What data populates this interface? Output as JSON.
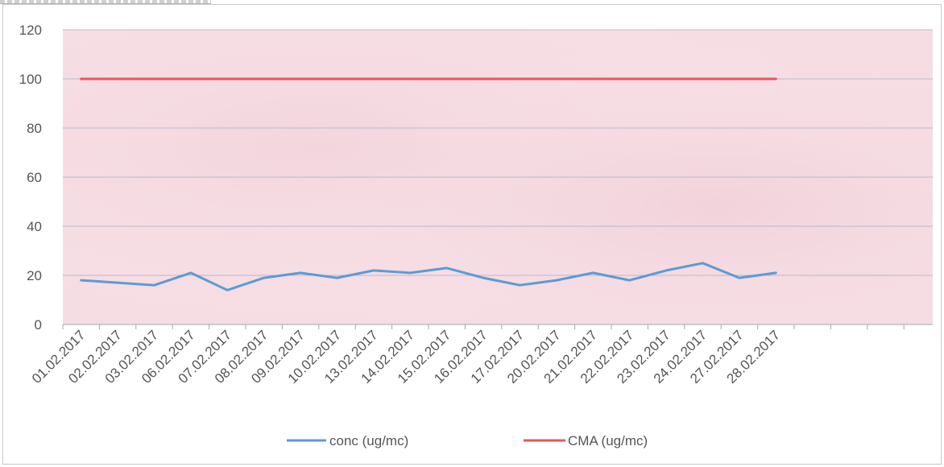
{
  "chart_data": {
    "type": "line",
    "title": "",
    "xlabel": "",
    "ylabel": "",
    "ylim": [
      0,
      120
    ],
    "yticks": [
      0,
      20,
      40,
      60,
      80,
      100,
      120
    ],
    "grid": true,
    "legend_position": "bottom",
    "categories": [
      "01.02.2017",
      "02.02.2017",
      "03.02.2017",
      "06.02.2017",
      "07.02.2017",
      "08.02.2017",
      "09.02.2017",
      "10.02.2017",
      "13.02.2017",
      "14.02.2017",
      "15.02.2017",
      "16.02.2017",
      "17.02.2017",
      "20.02.2017",
      "21.02.2017",
      "22.02.2017",
      "23.02.2017",
      "24.02.2017",
      "27.02.2017",
      "28.02.2017"
    ],
    "series": [
      {
        "name": "conc (ug/mc)",
        "color": "#5b9bd5",
        "values": [
          18,
          17,
          16,
          21,
          14,
          19,
          21,
          19,
          22,
          21,
          23,
          19,
          16,
          18,
          21,
          18,
          22,
          25,
          19,
          21
        ]
      },
      {
        "name": "CMA (ug/mc)",
        "color": "#e8555a",
        "values": [
          100,
          100,
          100,
          100,
          100,
          100,
          100,
          100,
          100,
          100,
          100,
          100,
          100,
          100,
          100,
          100,
          100,
          100,
          100,
          100
        ]
      }
    ],
    "plot_background": "#f6dde3",
    "gridline_color": "#b9b9c9"
  }
}
